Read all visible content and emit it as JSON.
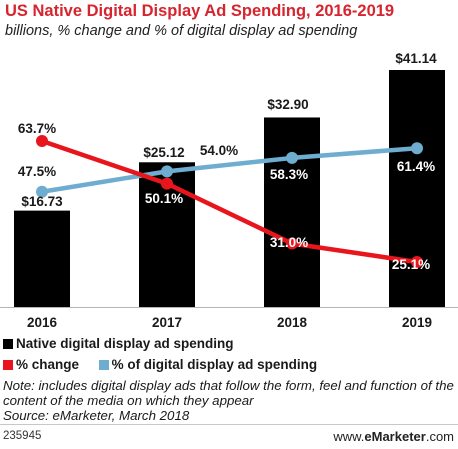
{
  "chart_data": {
    "type": "bar",
    "title": "US Native Digital Display Ad Spending, 2016-2019",
    "subtitle": "billions, % change and % of digital display ad spending",
    "categories": [
      "2016",
      "2017",
      "2018",
      "2019"
    ],
    "series": [
      {
        "name": "Native digital display ad spending",
        "type": "bar",
        "color": "#000000",
        "values": [
          16.73,
          25.12,
          32.9,
          41.14
        ],
        "labels": [
          "$16.73",
          "$25.12",
          "$32.90",
          "$41.14"
        ]
      },
      {
        "name": "% change",
        "type": "line",
        "color": "#e8161c",
        "values": [
          63.7,
          50.1,
          31.0,
          25.1
        ],
        "labels": [
          "63.7%",
          "50.1%",
          "31.0%",
          "25.1%"
        ]
      },
      {
        "name": "% of digital display ad spending",
        "type": "line",
        "color": "#6eadd0",
        "values": [
          47.5,
          54.0,
          58.3,
          61.4
        ],
        "labels": [
          "47.5%",
          "54.0%",
          "58.3%",
          "61.4%"
        ]
      }
    ],
    "grid": false
  },
  "note": "Note: includes digital display ads that follow the form, feel and function of the content of the media on which they appear",
  "source": "Source: eMarketer, March 2018",
  "chart_id": "235945",
  "brand": {
    "prefix": "www.",
    "name": "eMarketer",
    "suffix": ".com"
  }
}
